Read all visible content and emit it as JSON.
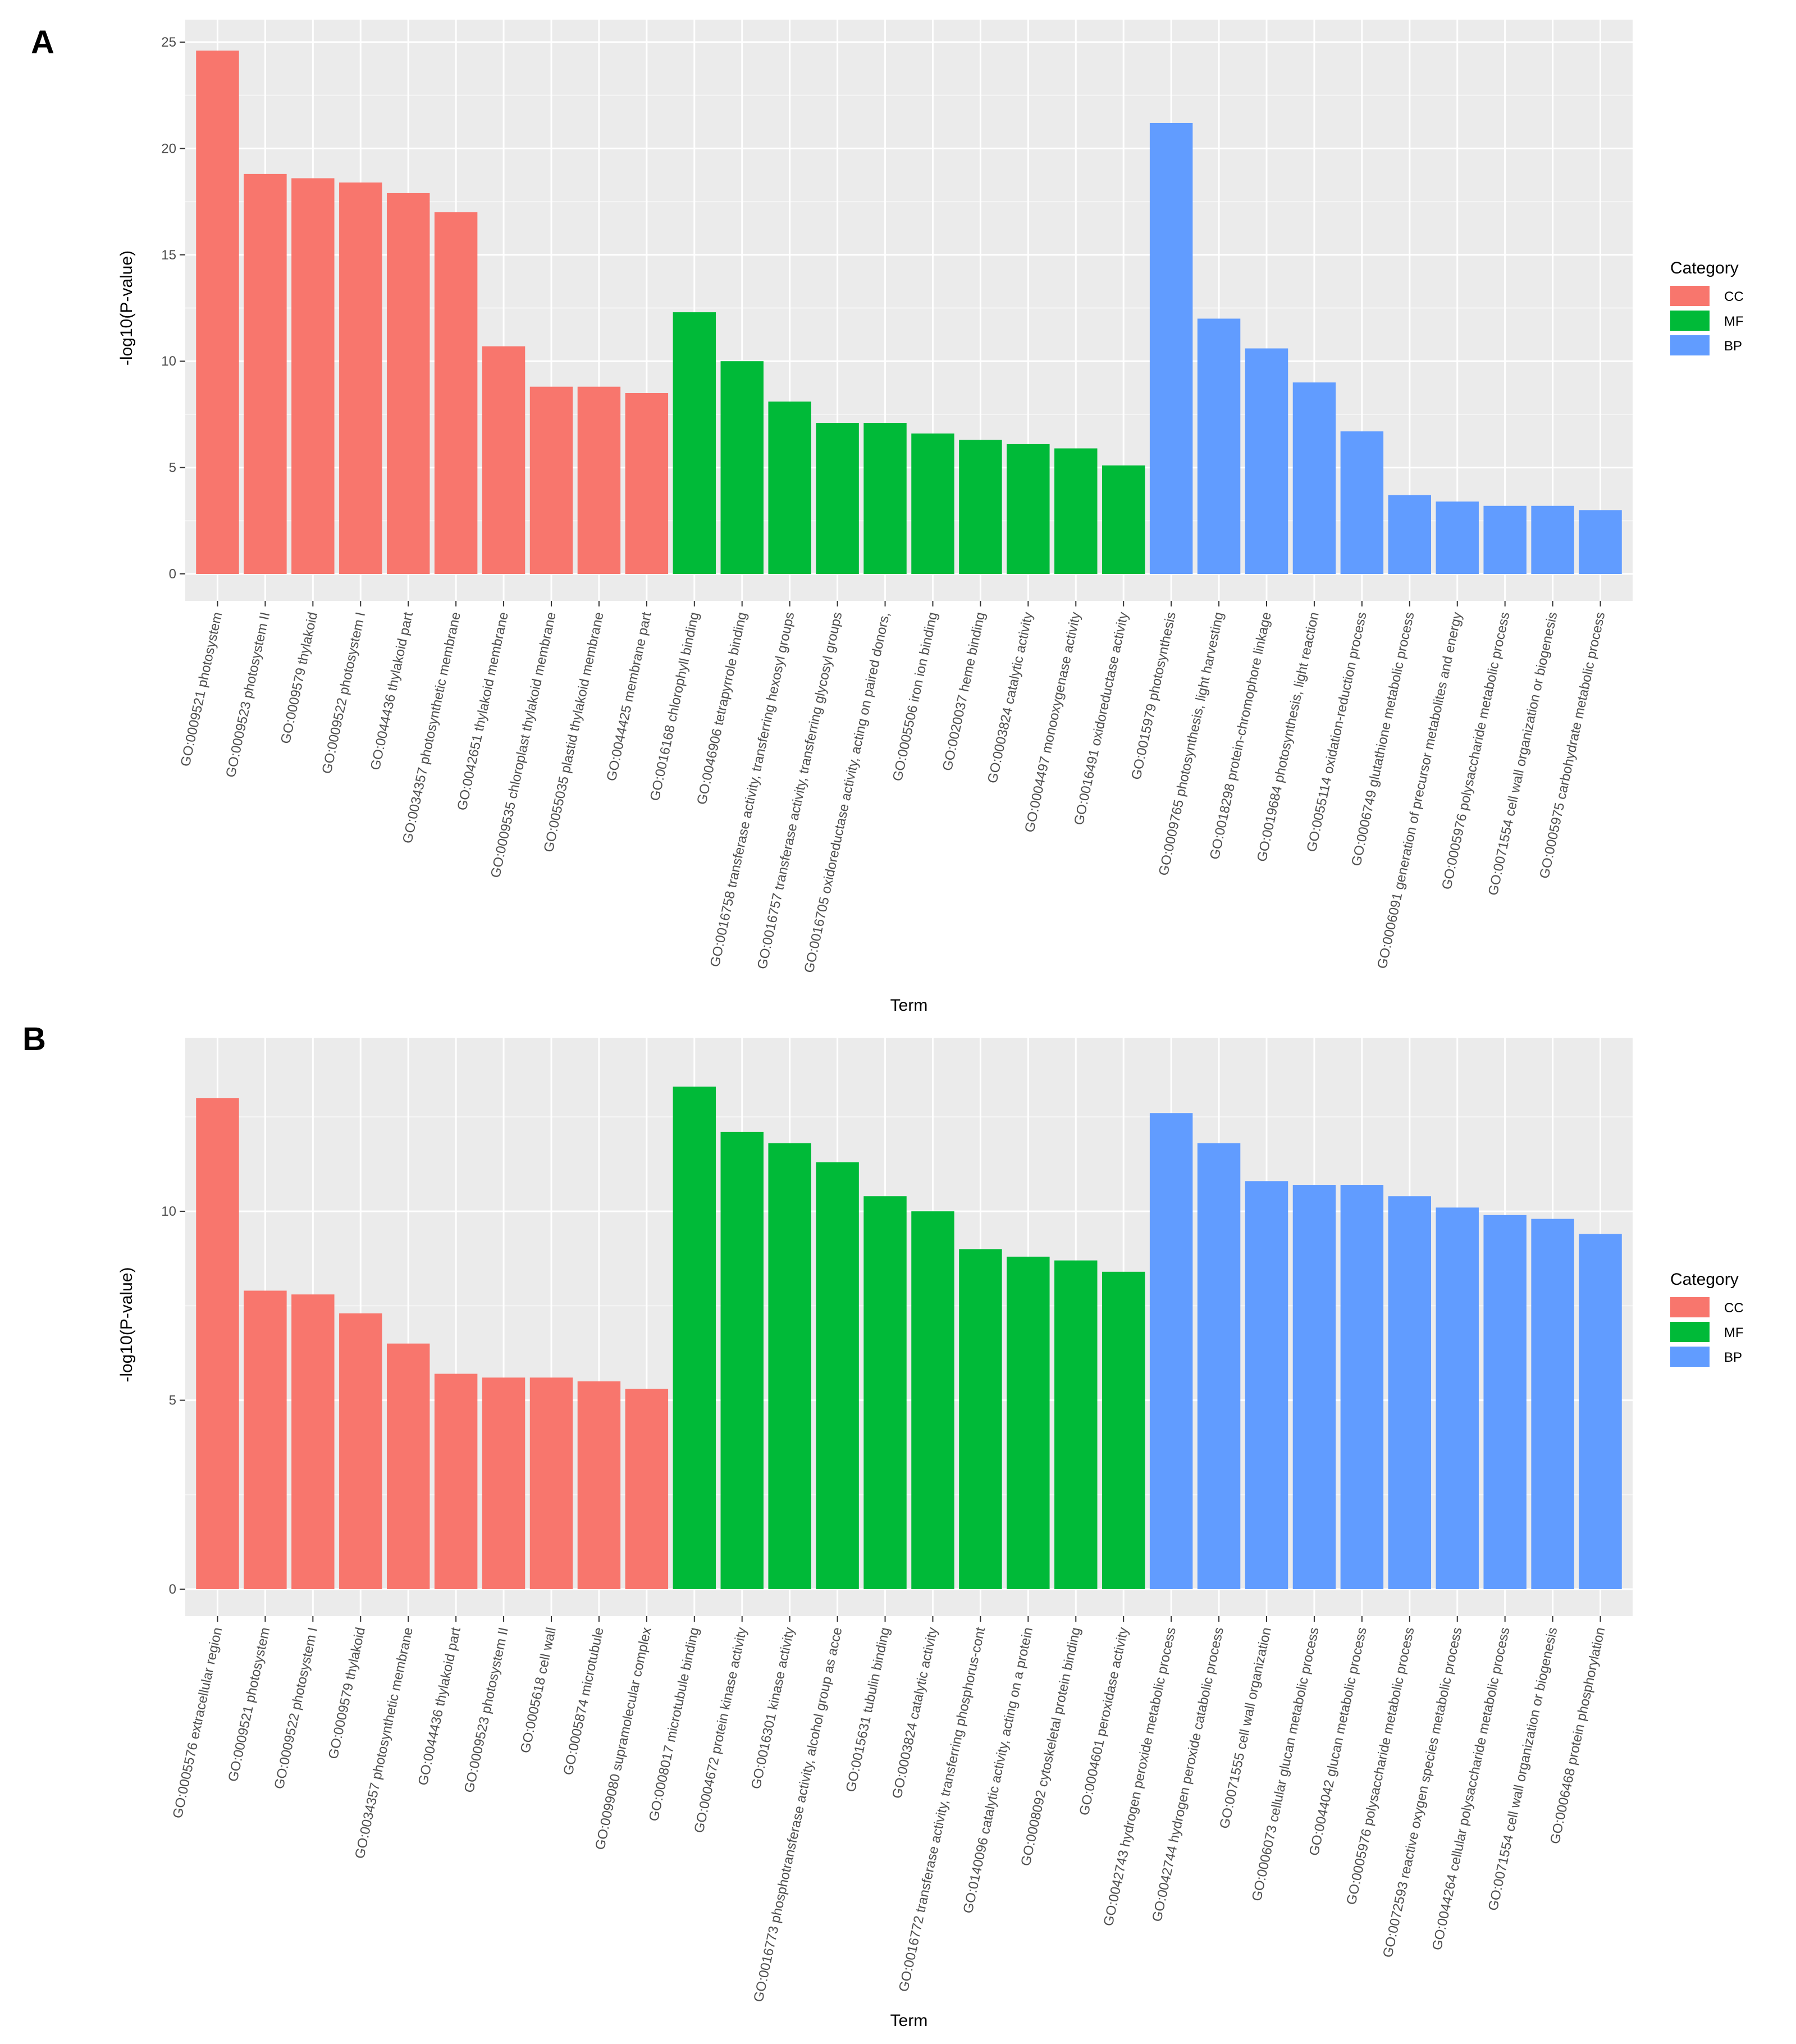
{
  "chart_data": [
    {
      "panel": "A",
      "type": "bar",
      "xlabel": "Term",
      "ylabel": "-log10(P-value)",
      "ylim": [
        0,
        25
      ],
      "yticks": [
        0,
        5,
        10,
        15,
        20,
        25
      ],
      "grid": true,
      "legend": {
        "title": "Category",
        "placement": "right",
        "entries": [
          {
            "label": "CC",
            "color": "#F8766D"
          },
          {
            "label": "MF",
            "color": "#00BA38"
          },
          {
            "label": "BP",
            "color": "#619CFF"
          }
        ]
      },
      "categories": [
        "GO:0009521 photosystem",
        "GO:0009523 photosystem II",
        "GO:0009579 thylakoid",
        "GO:0009522 photosystem I",
        "GO:0044436 thylakoid part",
        "GO:0034357 photosynthetic membrane",
        "GO:0042651 thylakoid membrane",
        "GO:0009535 chloroplast thylakoid membrane",
        "GO:0055035 plastid thylakoid membrane",
        "GO:0044425 membrane part",
        "GO:0016168 chlorophyll binding",
        "GO:0046906 tetrapyrrole binding",
        "GO:0016758 transferase activity, transferring hexosyl groups",
        "GO:0016757 transferase activity, transferring glycosyl groups",
        "GO:0016705 oxidoreductase activity, acting on paired donors,",
        "GO:0005506 iron ion binding",
        "GO:0020037 heme binding",
        "GO:0003824 catalytic activity",
        "GO:0004497 monooxygenase activity",
        "GO:0016491 oxidoreductase activity",
        "GO:0015979 photosynthesis",
        "GO:0009765 photosynthesis, light harvesting",
        "GO:0018298 protein-chromophore linkage",
        "GO:0019684 photosynthesis, light reaction",
        "GO:0055114 oxidation-reduction process",
        "GO:0006749 glutathione metabolic process",
        "GO:0006091 generation of precursor metabolites and energy",
        "GO:0005976 polysaccharide metabolic process",
        "GO:0071554 cell wall organization or biogenesis",
        "GO:0005975 carbohydrate metabolic process"
      ],
      "groups": [
        "CC",
        "CC",
        "CC",
        "CC",
        "CC",
        "CC",
        "CC",
        "CC",
        "CC",
        "CC",
        "MF",
        "MF",
        "MF",
        "MF",
        "MF",
        "MF",
        "MF",
        "MF",
        "MF",
        "MF",
        "BP",
        "BP",
        "BP",
        "BP",
        "BP",
        "BP",
        "BP",
        "BP",
        "BP",
        "BP"
      ],
      "values": [
        24.6,
        18.8,
        18.6,
        18.4,
        17.9,
        17.0,
        10.7,
        8.8,
        8.8,
        8.5,
        12.3,
        10.0,
        8.1,
        7.1,
        7.1,
        6.6,
        6.3,
        6.1,
        5.9,
        5.1,
        21.2,
        12.0,
        10.6,
        9.0,
        6.7,
        3.7,
        3.4,
        3.2,
        3.2,
        3.0
      ]
    },
    {
      "panel": "B",
      "type": "bar",
      "xlabel": "Term",
      "ylabel": "-log10(P-value)",
      "ylim": [
        0,
        14
      ],
      "yticks": [
        0,
        5,
        10
      ],
      "grid": true,
      "legend": {
        "title": "Category",
        "placement": "right",
        "entries": [
          {
            "label": "CC",
            "color": "#F8766D"
          },
          {
            "label": "MF",
            "color": "#00BA38"
          },
          {
            "label": "BP",
            "color": "#619CFF"
          }
        ]
      },
      "categories": [
        "GO:0005576 extracellular region",
        "GO:0009521 photosystem",
        "GO:0009522 photosystem I",
        "GO:0009579 thylakoid",
        "GO:0034357 photosynthetic membrane",
        "GO:0044436 thylakoid part",
        "GO:0009523 photosystem II",
        "GO:0005618 cell wall",
        "GO:0005874 microtubule",
        "GO:0099080 supramolecular complex",
        "GO:0008017 microtubule binding",
        "GO:0004672 protein kinase activity",
        "GO:0016301 kinase activity",
        "GO:0016773 phosphotransferase activity, alcohol group as acce",
        "GO:0015631 tubulin binding",
        "GO:0003824 catalytic activity",
        "GO:0016772 transferase activity, transferring phosphorus-cont",
        "GO:0140096 catalytic activity, acting on a protein",
        "GO:0008092 cytoskeletal protein binding",
        "GO:0004601 peroxidase activity",
        "GO:0042743 hydrogen peroxide metabolic process",
        "GO:0042744 hydrogen peroxide catabolic process",
        "GO:0071555 cell wall organization",
        "GO:0006073 cellular glucan metabolic process",
        "GO:0044042 glucan metabolic process",
        "GO:0005976 polysaccharide metabolic process",
        "GO:0072593 reactive oxygen species metabolic process",
        "GO:0044264 cellular polysaccharide metabolic process",
        "GO:0071554 cell wall organization or biogenesis",
        "GO:0006468 protein phosphorylation"
      ],
      "groups": [
        "CC",
        "CC",
        "CC",
        "CC",
        "CC",
        "CC",
        "CC",
        "CC",
        "CC",
        "CC",
        "MF",
        "MF",
        "MF",
        "MF",
        "MF",
        "MF",
        "MF",
        "MF",
        "MF",
        "MF",
        "BP",
        "BP",
        "BP",
        "BP",
        "BP",
        "BP",
        "BP",
        "BP",
        "BP",
        "BP"
      ],
      "values": [
        13.0,
        7.9,
        7.8,
        7.3,
        6.5,
        5.7,
        5.6,
        5.6,
        5.5,
        5.3,
        13.3,
        12.1,
        11.8,
        11.3,
        10.4,
        10.0,
        9.0,
        8.8,
        8.7,
        8.4,
        12.6,
        11.8,
        10.8,
        10.7,
        10.7,
        10.4,
        10.1,
        9.9,
        9.8,
        9.4
      ]
    }
  ]
}
